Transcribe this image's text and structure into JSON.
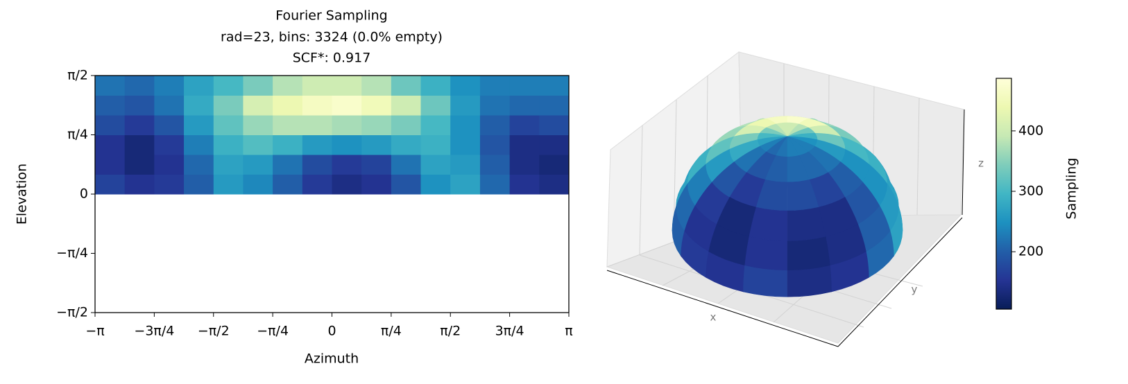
{
  "chart_data": {
    "type": "heatmap",
    "title": "Fourier Sampling",
    "subtitle": [
      "rad=23, bins: 3324 (0.0% empty)",
      "SCF*: 0.917"
    ],
    "xlabel": "Azimuth",
    "ylabel": "Elevation",
    "xlim": [
      -3.14159,
      3.14159
    ],
    "ylim": [
      -1.5708,
      1.5708
    ],
    "xticks": [
      {
        "value": -3.14159,
        "label": "−π"
      },
      {
        "value": -2.35619,
        "label": "−3π/4"
      },
      {
        "value": -1.5708,
        "label": "−π/2"
      },
      {
        "value": -0.7854,
        "label": "−π/4"
      },
      0,
      {
        "value": 0.7854,
        "label": "π/4"
      },
      {
        "value": 1.5708,
        "label": "π/2"
      },
      {
        "value": 2.35619,
        "label": "3π/4"
      },
      {
        "value": 3.14159,
        "label": "π"
      }
    ],
    "yticks": [
      {
        "value": -1.5708,
        "label": "−π/2"
      },
      {
        "value": -0.7854,
        "label": "−π/4"
      },
      0,
      {
        "value": 0.7854,
        "label": "π/4"
      },
      {
        "value": 1.5708,
        "label": "π/2"
      }
    ],
    "x": [
      -2.945,
      -2.553,
      -2.16,
      -1.767,
      -1.374,
      -0.982,
      -0.589,
      -0.196,
      0.196,
      0.589,
      0.982,
      1.374,
      1.767,
      2.16,
      2.553,
      2.945
    ],
    "y": [
      0.131,
      0.393,
      0.654,
      0.916,
      1.178,
      1.44
    ],
    "z": [
      [
        170,
        150,
        160,
        200,
        260,
        240,
        200,
        160,
        140,
        150,
        190,
        250,
        270,
        210,
        150,
        140
      ],
      [
        150,
        130,
        150,
        210,
        270,
        260,
        220,
        180,
        160,
        170,
        220,
        270,
        260,
        200,
        140,
        130
      ],
      [
        150,
        130,
        160,
        230,
        290,
        310,
        290,
        260,
        250,
        260,
        280,
        290,
        250,
        190,
        140,
        140
      ],
      [
        180,
        160,
        190,
        260,
        320,
        360,
        380,
        380,
        370,
        360,
        340,
        300,
        250,
        200,
        170,
        180
      ],
      [
        200,
        190,
        220,
        280,
        340,
        410,
        440,
        460,
        470,
        450,
        400,
        330,
        260,
        220,
        210,
        210
      ],
      [
        220,
        210,
        230,
        270,
        300,
        340,
        380,
        400,
        400,
        380,
        330,
        290,
        250,
        230,
        230,
        230
      ]
    ],
    "colormap": [
      "#081d58",
      "#253494",
      "#225ea8",
      "#1d91c0",
      "#41b6c4",
      "#7fcdbb",
      "#c7e9b4",
      "#edf8b1",
      "#ffffd9"
    ],
    "colorbar": {
      "label": "Sampling",
      "lim": [
        105,
        487
      ],
      "ticks": [
        200,
        300,
        400
      ]
    },
    "projection_3d": {
      "xlabel": "x",
      "ylabel": "y",
      "zlabel": "z"
    }
  }
}
